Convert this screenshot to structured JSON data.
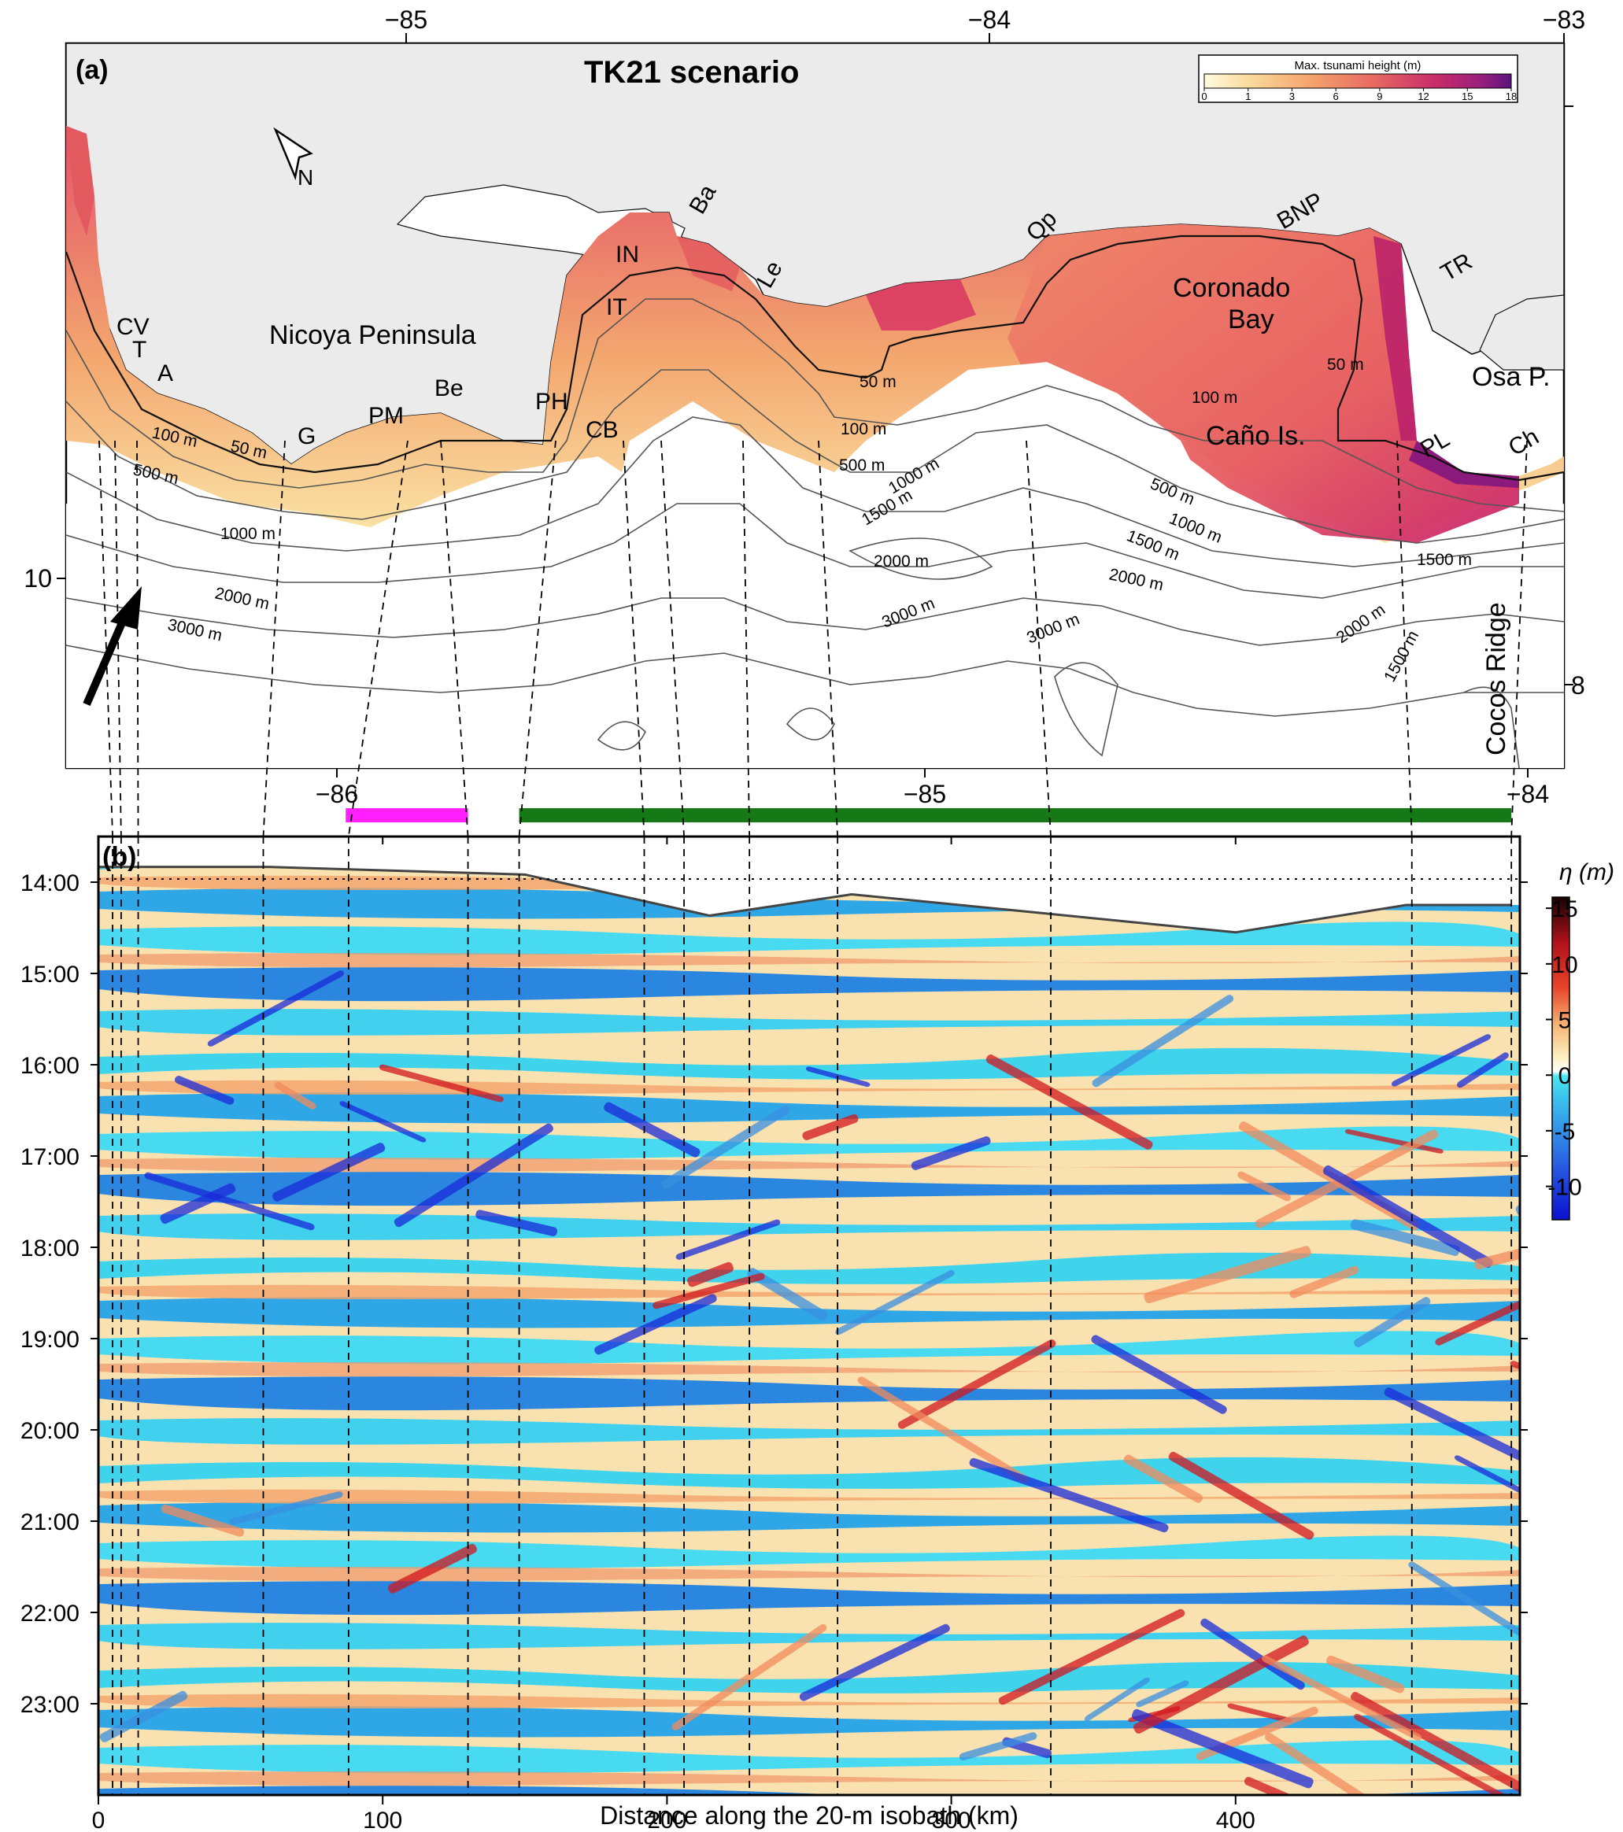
{
  "panel_a": {
    "label": "(a)",
    "title": "TK21 scenario",
    "top_lon_ticks": [
      "−85",
      "−84",
      "−83"
    ],
    "bottom_lon_ticks": [
      "−86",
      "−85",
      "−84"
    ],
    "left_lat_tick": "10",
    "right_lat_tick": "8",
    "north_label": "N",
    "colorbar": {
      "title": "Max. tsunami height (m)",
      "ticks": [
        "0",
        "1",
        "3",
        "6",
        "9",
        "12",
        "15",
        "18"
      ]
    },
    "place_labels": {
      "nicoya": "Nicoya Peninsula",
      "coronado": "Coronado",
      "bay": "Bay",
      "osa": "Osa P.",
      "cano": "Caño Is.",
      "cocos": "Cocos Ridge"
    },
    "site_labels": [
      "CV",
      "T",
      "A",
      "G",
      "PM",
      "Be",
      "PH",
      "CB",
      "IT",
      "IN",
      "Ba",
      "Le",
      "Qp",
      "BNP",
      "TR",
      "PL",
      "Ch"
    ],
    "depth_labels": [
      "50 m",
      "50 m",
      "50 m",
      "100 m",
      "100 m",
      "100 m",
      "500 m",
      "500 m",
      "500 m",
      "1000 m",
      "1000 m",
      "1000 m",
      "1500 m",
      "1500 m",
      "1500 m",
      "1500 m",
      "2000 m",
      "2000 m",
      "2000 m",
      "2000 m",
      "3000 m",
      "3000 m",
      "3000 m"
    ],
    "colors": {
      "land": "#ebebeb",
      "tsunami_low": "#fbe8a6",
      "tsunami_mid": "#f2a06b",
      "tsunami_high": "#d8355f",
      "tsunami_max": "#6a1a86"
    }
  },
  "panel_b": {
    "label": "(b)",
    "xlabel": "Distance along the 20-m isobath (km)",
    "x_ticks": [
      "0",
      "100",
      "200",
      "300",
      "400"
    ],
    "y_ticks": [
      "14:00",
      "15:00",
      "16:00",
      "17:00",
      "18:00",
      "19:00",
      "20:00",
      "21:00",
      "22:00",
      "23:00"
    ],
    "colorbar_label": "η (m)",
    "colorbar_ticks": [
      "15",
      "10",
      "5",
      "0",
      "-5",
      "-10"
    ],
    "colors": {
      "pos_low": "#fbe9b4",
      "pos_mid": "#f28a5c",
      "pos_high": "#d2161e",
      "neg_low": "#38d8ec",
      "neg_mid": "#3a8fe0",
      "neg_high": "#1a2ad8",
      "magenta_bar": "#ff1fff",
      "green_bar": "#157a15"
    }
  },
  "chart_data": [
    {
      "type": "heatmap",
      "title": "TK21 scenario",
      "variable": "Max. tsunami height (m)",
      "colorbar_range": [
        0,
        18
      ],
      "x_ticks_deg": [
        -85,
        -84,
        -83
      ],
      "bottom_x_ticks_deg": [
        -86,
        -85,
        -84
      ],
      "y_ticks_deg": [
        10,
        8
      ],
      "bathymetry_contours_m": [
        50,
        100,
        500,
        1000,
        1500,
        2000,
        3000
      ],
      "sites": [
        "CV",
        "T",
        "A",
        "G",
        "PM",
        "Be",
        "PH",
        "CB",
        "IT",
        "IN",
        "Ba",
        "Le",
        "Qp",
        "BNP",
        "TR",
        "PL",
        "Ch"
      ]
    },
    {
      "type": "heatmap",
      "x_label": "Distance along the 20-m isobath (km)",
      "x_range_km": [
        0,
        500
      ],
      "time_range": [
        "13:30",
        "24:00"
      ],
      "colorbar_range_m": [
        -13,
        16
      ],
      "site_distances_km": [
        5,
        8,
        14,
        58,
        88,
        130,
        148,
        192,
        206,
        229,
        260,
        335,
        462,
        497
      ],
      "wavefront_arrival_path": [
        {
          "x": 0,
          "t": "13:50"
        },
        {
          "x": 60,
          "t": "13:50"
        },
        {
          "x": 150,
          "t": "13:55"
        },
        {
          "x": 215,
          "t": "14:22"
        },
        {
          "x": 265,
          "t": "14:08"
        },
        {
          "x": 330,
          "t": "14:20"
        },
        {
          "x": 400,
          "t": "14:33"
        },
        {
          "x": 460,
          "t": "14:15"
        },
        {
          "x": 497,
          "t": "14:15"
        }
      ],
      "highlight_ranges_km": [
        [
          87,
          130
        ],
        [
          148,
          497
        ]
      ]
    }
  ]
}
